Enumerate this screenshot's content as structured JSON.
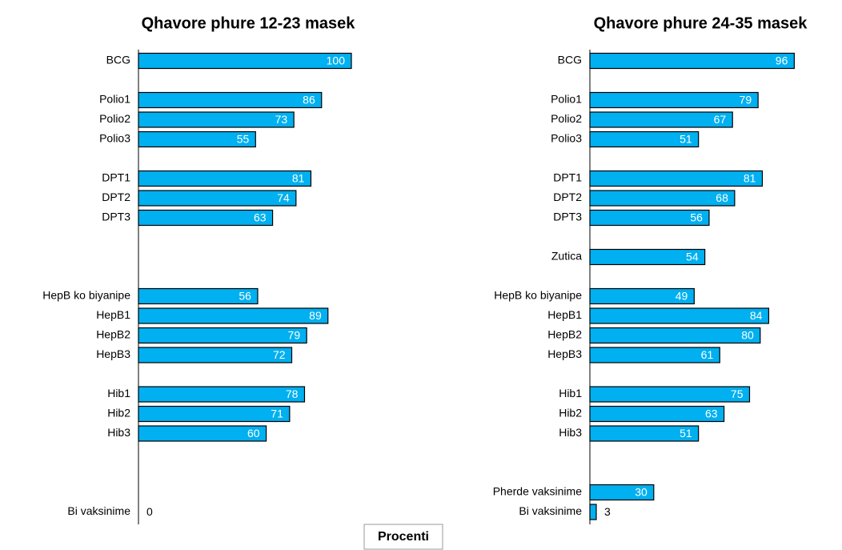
{
  "chart_data": [
    {
      "type": "bar",
      "orientation": "horizontal",
      "title": "Qhavore phure 12-23 masek",
      "color": "#00b0f0",
      "categories": [
        "BCG",
        null,
        "Polio1",
        "Polio2",
        "Polio3",
        null,
        "DPT1",
        "DPT2",
        "DPT3",
        null,
        null,
        null,
        "HepB ko biyanipe",
        "HepB1",
        "HepB2",
        "HepB3",
        null,
        "Hib1",
        "Hib2",
        "Hib3",
        null,
        null,
        null,
        "Bi vaksinime"
      ],
      "values": [
        100,
        null,
        86,
        73,
        55,
        null,
        81,
        74,
        63,
        null,
        null,
        null,
        56,
        89,
        79,
        72,
        null,
        78,
        71,
        60,
        null,
        null,
        null,
        0
      ],
      "xlim": [
        0,
        100
      ]
    },
    {
      "type": "bar",
      "orientation": "horizontal",
      "title": "Qhavore phure 24-35 masek",
      "color": "#00b0f0",
      "categories": [
        "BCG",
        null,
        "Polio1",
        "Polio2",
        "Polio3",
        null,
        "DPT1",
        "DPT2",
        "DPT3",
        null,
        "Zutica",
        null,
        "HepB ko biyanipe",
        "HepB1",
        "HepB2",
        "HepB3",
        null,
        "Hib1",
        "Hib2",
        "Hib3",
        null,
        null,
        "Pherde vaksinime",
        "Bi vaksinime"
      ],
      "values": [
        96,
        null,
        79,
        67,
        51,
        null,
        81,
        68,
        56,
        null,
        54,
        null,
        49,
        84,
        80,
        61,
        null,
        75,
        63,
        51,
        null,
        null,
        30,
        3
      ],
      "xlim": [
        0,
        100
      ]
    }
  ],
  "xlabel": "Procenti"
}
